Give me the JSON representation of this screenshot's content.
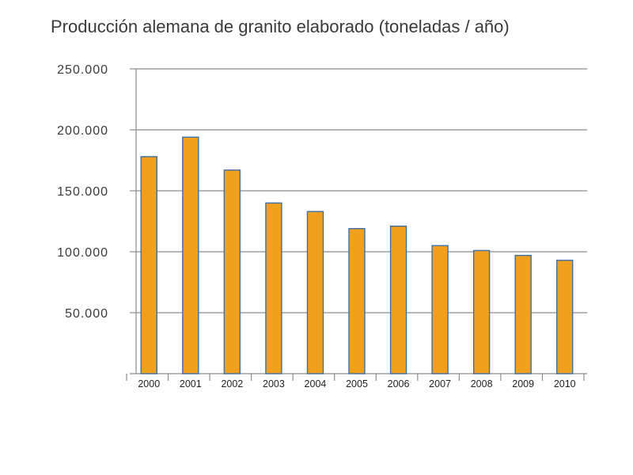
{
  "chart_data": {
    "type": "bar",
    "title": "Producción alemana de granito elaborado (toneladas / año)",
    "xlabel": "",
    "ylabel": "",
    "categories": [
      "2000",
      "2001",
      "2002",
      "2003",
      "2004",
      "2005",
      "2006",
      "2007",
      "2008",
      "2009",
      "2010"
    ],
    "values": [
      178000,
      194000,
      167000,
      140000,
      133000,
      119000,
      121000,
      105000,
      101000,
      97000,
      93000
    ],
    "ylim": [
      0,
      250000
    ],
    "yticks": [
      50000,
      100000,
      150000,
      200000,
      250000
    ],
    "ytick_labels": [
      "50.000",
      "100.000",
      "150.000",
      "200.000",
      "250.000"
    ],
    "grid": true,
    "legend": "none",
    "colors": {
      "bar_fill": "#f0a01c",
      "bar_stroke": "#3f6fa6",
      "grid": "#8c8c8c",
      "text": "#3a3a3a"
    }
  }
}
